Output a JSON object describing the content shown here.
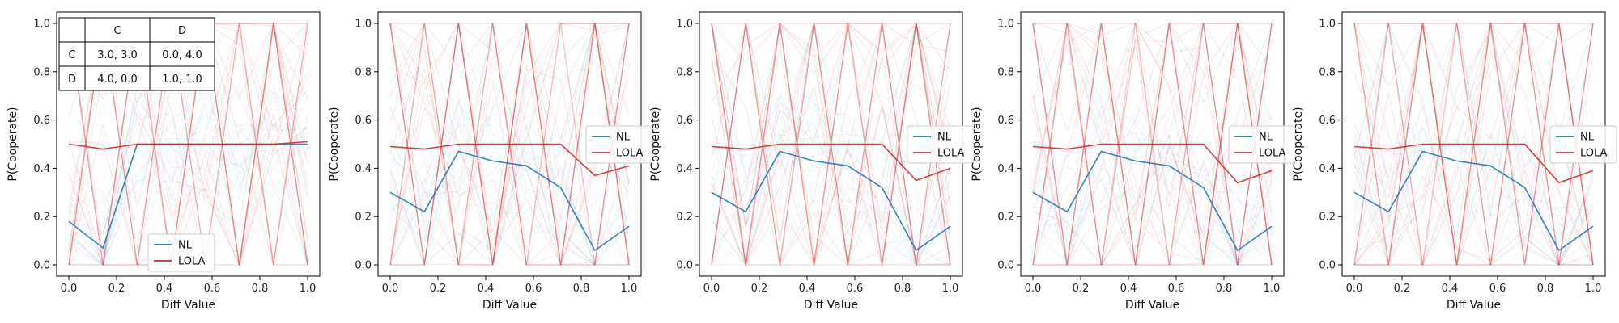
{
  "chart_data": [
    {
      "type": "line",
      "xlabel": "Diff Value",
      "ylabel": "P(Cooperate)",
      "xlim": [
        0.0,
        1.0
      ],
      "ylim": [
        0.0,
        1.0
      ],
      "xticks": [
        "0.0",
        "0.2",
        "0.4",
        "0.6",
        "0.8",
        "1.0"
      ],
      "yticks": [
        "0.0",
        "0.2",
        "0.4",
        "0.6",
        "0.8",
        "1.0"
      ],
      "x": [
        0.0,
        0.143,
        0.286,
        0.429,
        0.571,
        0.714,
        0.857,
        1.0
      ],
      "series": [
        {
          "name": "NL",
          "color": "#1f77b4",
          "values": [
            0.18,
            0.07,
            0.5,
            0.5,
            0.5,
            0.5,
            0.5,
            0.5
          ]
        },
        {
          "name": "LOLA",
          "color": "#d62728",
          "values": [
            0.5,
            0.48,
            0.5,
            0.5,
            0.5,
            0.5,
            0.5,
            0.51
          ]
        }
      ],
      "legend": "lower-center",
      "background_seed": 11,
      "payoff_table": {
        "col_headers": [
          "C",
          "D"
        ],
        "rows": [
          {
            "label": "C",
            "cells": [
              "3.0, 3.0",
              "0.0, 4.0"
            ]
          },
          {
            "label": "D",
            "cells": [
              "4.0, 0.0",
              "1.0, 1.0"
            ]
          }
        ]
      }
    },
    {
      "type": "line",
      "xlabel": "Diff Value",
      "ylabel": "P(Cooperate)",
      "xlim": [
        0.0,
        1.0
      ],
      "ylim": [
        0.0,
        1.0
      ],
      "xticks": [
        "0.0",
        "0.2",
        "0.4",
        "0.6",
        "0.8",
        "1.0"
      ],
      "yticks": [
        "0.0",
        "0.2",
        "0.4",
        "0.6",
        "0.8",
        "1.0"
      ],
      "x": [
        0.0,
        0.143,
        0.286,
        0.429,
        0.571,
        0.714,
        0.857,
        1.0
      ],
      "series": [
        {
          "name": "NL",
          "color": "#1f77b4",
          "values": [
            0.3,
            0.22,
            0.47,
            0.43,
            0.41,
            0.32,
            0.06,
            0.16
          ]
        },
        {
          "name": "LOLA",
          "color": "#d62728",
          "values": [
            0.49,
            0.48,
            0.5,
            0.5,
            0.5,
            0.5,
            0.37,
            0.41
          ]
        }
      ],
      "legend": "right",
      "background_seed": 23
    },
    {
      "type": "line",
      "xlabel": "Diff Value",
      "ylabel": "P(Cooperate)",
      "xlim": [
        0.0,
        1.0
      ],
      "ylim": [
        0.0,
        1.0
      ],
      "xticks": [
        "0.0",
        "0.2",
        "0.4",
        "0.6",
        "0.8",
        "1.0"
      ],
      "yticks": [
        "0.0",
        "0.2",
        "0.4",
        "0.6",
        "0.8",
        "1.0"
      ],
      "x": [
        0.0,
        0.143,
        0.286,
        0.429,
        0.571,
        0.714,
        0.857,
        1.0
      ],
      "series": [
        {
          "name": "NL",
          "color": "#1f77b4",
          "values": [
            0.3,
            0.22,
            0.47,
            0.43,
            0.41,
            0.32,
            0.06,
            0.16
          ]
        },
        {
          "name": "LOLA",
          "color": "#d62728",
          "values": [
            0.49,
            0.48,
            0.5,
            0.5,
            0.5,
            0.5,
            0.35,
            0.4
          ]
        }
      ],
      "legend": "right",
      "background_seed": 37
    },
    {
      "type": "line",
      "xlabel": "Diff Value",
      "ylabel": "P(Cooperate)",
      "xlim": [
        0.0,
        1.0
      ],
      "ylim": [
        0.0,
        1.0
      ],
      "xticks": [
        "0.0",
        "0.2",
        "0.4",
        "0.6",
        "0.8",
        "1.0"
      ],
      "yticks": [
        "0.0",
        "0.2",
        "0.4",
        "0.6",
        "0.8",
        "1.0"
      ],
      "x": [
        0.0,
        0.143,
        0.286,
        0.429,
        0.571,
        0.714,
        0.857,
        1.0
      ],
      "series": [
        {
          "name": "NL",
          "color": "#1f77b4",
          "values": [
            0.3,
            0.22,
            0.47,
            0.43,
            0.41,
            0.32,
            0.06,
            0.16
          ]
        },
        {
          "name": "LOLA",
          "color": "#d62728",
          "values": [
            0.49,
            0.48,
            0.5,
            0.5,
            0.5,
            0.5,
            0.34,
            0.39
          ]
        }
      ],
      "legend": "right",
      "background_seed": 41
    },
    {
      "type": "line",
      "xlabel": "Diff Value",
      "ylabel": "P(Cooperate)",
      "xlim": [
        0.0,
        1.0
      ],
      "ylim": [
        0.0,
        1.0
      ],
      "xticks": [
        "0.0",
        "0.2",
        "0.4",
        "0.6",
        "0.8",
        "1.0"
      ],
      "yticks": [
        "0.0",
        "0.2",
        "0.4",
        "0.6",
        "0.8",
        "1.0"
      ],
      "x": [
        0.0,
        0.143,
        0.286,
        0.429,
        0.571,
        0.714,
        0.857,
        1.0
      ],
      "series": [
        {
          "name": "NL",
          "color": "#1f77b4",
          "values": [
            0.3,
            0.22,
            0.47,
            0.43,
            0.41,
            0.32,
            0.06,
            0.16
          ]
        },
        {
          "name": "LOLA",
          "color": "#d62728",
          "values": [
            0.49,
            0.48,
            0.5,
            0.5,
            0.5,
            0.5,
            0.34,
            0.39
          ]
        }
      ],
      "legend": "right",
      "background_seed": 53
    }
  ]
}
